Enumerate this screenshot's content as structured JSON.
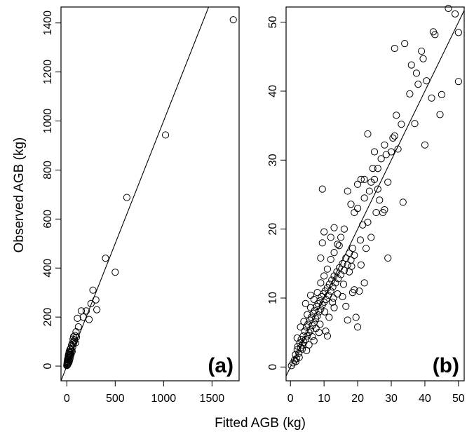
{
  "figure": {
    "ylabel": "Observed AGB (kg)",
    "xlabel": "Fitted AGB (kg)"
  },
  "chart_data": [
    {
      "type": "scatter",
      "panel_label": "(a)",
      "xlim": [
        -60,
        1780
      ],
      "ylim": [
        -60,
        1465
      ],
      "xticks": [
        0,
        500,
        1000,
        1500
      ],
      "yticks": [
        0,
        200,
        400,
        600,
        800,
        1000,
        1200,
        1400
      ],
      "reference_line": {
        "slope": 1,
        "intercept": 0
      },
      "grid": false,
      "points": [
        [
          0,
          2
        ],
        [
          2,
          6
        ],
        [
          3,
          12
        ],
        [
          5,
          8
        ],
        [
          5,
          18
        ],
        [
          6,
          4
        ],
        [
          8,
          25
        ],
        [
          10,
          14
        ],
        [
          10,
          30
        ],
        [
          12,
          20
        ],
        [
          14,
          10
        ],
        [
          15,
          35
        ],
        [
          16,
          42
        ],
        [
          18,
          28
        ],
        [
          20,
          50
        ],
        [
          22,
          15
        ],
        [
          24,
          38
        ],
        [
          25,
          60
        ],
        [
          26,
          22
        ],
        [
          28,
          45
        ],
        [
          30,
          55
        ],
        [
          32,
          30
        ],
        [
          34,
          68
        ],
        [
          35,
          48
        ],
        [
          38,
          40
        ],
        [
          40,
          72
        ],
        [
          42,
          58
        ],
        [
          45,
          50
        ],
        [
          48,
          85
        ],
        [
          50,
          65
        ],
        [
          55,
          60
        ],
        [
          58,
          95
        ],
        [
          60,
          78
        ],
        [
          65,
          110
        ],
        [
          68,
          90
        ],
        [
          70,
          120
        ],
        [
          75,
          100
        ],
        [
          80,
          105
        ],
        [
          85,
          125
        ],
        [
          90,
          95
        ],
        [
          95,
          140
        ],
        [
          100,
          118
        ],
        [
          110,
          195
        ],
        [
          120,
          160
        ],
        [
          150,
          225
        ],
        [
          170,
          200
        ],
        [
          200,
          225
        ],
        [
          230,
          190
        ],
        [
          250,
          255
        ],
        [
          270,
          310
        ],
        [
          300,
          270
        ],
        [
          310,
          230
        ],
        [
          400,
          440
        ],
        [
          500,
          383
        ],
        [
          620,
          688
        ],
        [
          1020,
          943
        ],
        [
          1720,
          1413
        ]
      ]
    },
    {
      "type": "scatter",
      "panel_label": "(b)",
      "xlim": [
        -1.3,
        51.7
      ],
      "ylim": [
        -2,
        52.2
      ],
      "xticks": [
        0,
        10,
        20,
        30,
        40,
        50
      ],
      "yticks": [
        0,
        10,
        20,
        30,
        40,
        50
      ],
      "reference_line": {
        "slope": 1,
        "intercept": 0
      },
      "grid": false,
      "points": [
        [
          0.3,
          0.2
        ],
        [
          0.8,
          0.6
        ],
        [
          1.2,
          1.0
        ],
        [
          1.5,
          1.8
        ],
        [
          1.8,
          1.2
        ],
        [
          2.0,
          2.5
        ],
        [
          2.2,
          3.0
        ],
        [
          2.5,
          2.0
        ],
        [
          2.8,
          3.5
        ],
        [
          3.0,
          2.8
        ],
        [
          3.2,
          4.0
        ],
        [
          3.5,
          3.2
        ],
        [
          3.8,
          4.5
        ],
        [
          4.0,
          3.6
        ],
        [
          4.2,
          5.2
        ],
        [
          4.5,
          4.0
        ],
        [
          4.8,
          5.8
        ],
        [
          5.0,
          4.5
        ],
        [
          5.2,
          6.2
        ],
        [
          5.5,
          5.0
        ],
        [
          5.8,
          6.8
        ],
        [
          6.0,
          5.4
        ],
        [
          6.2,
          7.2
        ],
        [
          6.5,
          6.0
        ],
        [
          6.8,
          7.8
        ],
        [
          7.0,
          6.4
        ],
        [
          7.2,
          8.2
        ],
        [
          7.5,
          7.0
        ],
        [
          7.8,
          8.8
        ],
        [
          8.0,
          7.4
        ],
        [
          8.2,
          9.2
        ],
        [
          8.5,
          8.0
        ],
        [
          8.8,
          9.6
        ],
        [
          9.0,
          8.4
        ],
        [
          9.2,
          10.2
        ],
        [
          9.5,
          9.0
        ],
        [
          9.8,
          10.6
        ],
        [
          10.0,
          9.4
        ],
        [
          10.3,
          11.0
        ],
        [
          10.6,
          9.8
        ],
        [
          11.0,
          11.5
        ],
        [
          11.3,
          10.4
        ],
        [
          11.6,
          12.0
        ],
        [
          12.0,
          11.0
        ],
        [
          12.3,
          12.6
        ],
        [
          12.6,
          11.6
        ],
        [
          13.0,
          13.2
        ],
        [
          13.4,
          12.2
        ],
        [
          13.8,
          13.8
        ],
        [
          14.2,
          12.8
        ],
        [
          14.6,
          14.4
        ],
        [
          15.0,
          13.4
        ],
        [
          15.5,
          15.0
        ],
        [
          16.0,
          14.0
        ],
        [
          16.5,
          15.8
        ],
        [
          17.0,
          14.8
        ],
        [
          17.5,
          16.5
        ],
        [
          18.0,
          15.5
        ],
        [
          18.5,
          17.2
        ],
        [
          19.0,
          16.2
        ],
        [
          2.0,
          4.2
        ],
        [
          3.0,
          5.8
        ],
        [
          4.0,
          6.6
        ],
        [
          5.0,
          7.6
        ],
        [
          6.0,
          8.6
        ],
        [
          7.0,
          9.8
        ],
        [
          8.0,
          10.8
        ],
        [
          9.0,
          12.2
        ],
        [
          10.0,
          13.2
        ],
        [
          11.0,
          14.2
        ],
        [
          12.0,
          15.6
        ],
        [
          13.0,
          16.6
        ],
        [
          14.0,
          17.8
        ],
        [
          15.0,
          18.8
        ],
        [
          16.0,
          20.0
        ],
        [
          9.5,
          25.8
        ],
        [
          10.0,
          19.6
        ],
        [
          12.0,
          18.8
        ],
        [
          13.0,
          20.2
        ],
        [
          14.5,
          17.6
        ],
        [
          17.0,
          25.5
        ],
        [
          18.0,
          23.6
        ],
        [
          19.0,
          22.4
        ],
        [
          20.0,
          23.0
        ],
        [
          21.0,
          27.2
        ],
        [
          22.0,
          24.5
        ],
        [
          23.0,
          33.8
        ],
        [
          23.5,
          25.5
        ],
        [
          24.0,
          26.8
        ],
        [
          24.5,
          28.8
        ],
        [
          25.0,
          31.2
        ],
        [
          26.0,
          25.8
        ],
        [
          27.0,
          30.2
        ],
        [
          27.5,
          22.4
        ],
        [
          28.0,
          32.2
        ],
        [
          28.5,
          30.8
        ],
        [
          29.0,
          26.8
        ],
        [
          30.0,
          31.2
        ],
        [
          30.5,
          33.2
        ],
        [
          31.0,
          33.5
        ],
        [
          31.5,
          36.5
        ],
        [
          32.0,
          31.6
        ],
        [
          33.0,
          35.2
        ],
        [
          33.5,
          23.9
        ],
        [
          34.0,
          46.9
        ],
        [
          31.0,
          46.2
        ],
        [
          35.5,
          39.6
        ],
        [
          36.0,
          43.8
        ],
        [
          37.0,
          35.3
        ],
        [
          37.5,
          42.6
        ],
        [
          38.0,
          41.0
        ],
        [
          39.0,
          45.8
        ],
        [
          39.5,
          44.7
        ],
        [
          40.0,
          32.2
        ],
        [
          40.5,
          41.5
        ],
        [
          42.0,
          39.0
        ],
        [
          42.5,
          48.6
        ],
        [
          43.0,
          48.2
        ],
        [
          44.5,
          36.6
        ],
        [
          45.0,
          39.5
        ],
        [
          47.0,
          52.0
        ],
        [
          49.0,
          51.2
        ],
        [
          50.0,
          48.5
        ],
        [
          50.0,
          41.4
        ],
        [
          29.0,
          15.8
        ],
        [
          20.0,
          5.8
        ],
        [
          19.5,
          7.2
        ],
        [
          17.0,
          6.8
        ],
        [
          22.0,
          12.2
        ],
        [
          20.5,
          11.0
        ],
        [
          11.0,
          4.5
        ],
        [
          10.5,
          5.2
        ],
        [
          8.5,
          5.0
        ],
        [
          7.0,
          3.8
        ],
        [
          4.5,
          9.2
        ],
        [
          6.0,
          10.4
        ],
        [
          9.0,
          15.8
        ],
        [
          9.5,
          18.0
        ],
        [
          15.5,
          10.2
        ],
        [
          14.0,
          10.6
        ],
        [
          16.5,
          8.8
        ],
        [
          18.5,
          10.8
        ],
        [
          21.0,
          14.8
        ],
        [
          22.5,
          17.2
        ],
        [
          24.0,
          18.8
        ],
        [
          25.5,
          22.4
        ],
        [
          26.5,
          24.2
        ],
        [
          28.0,
          22.8
        ],
        [
          19.0,
          11.2
        ],
        [
          13.0,
          8.6
        ],
        [
          12.5,
          9.4
        ],
        [
          17.5,
          13.8
        ],
        [
          11.5,
          7.2
        ],
        [
          6.5,
          4.4
        ],
        [
          5.5,
          3.2
        ],
        [
          3.5,
          2.6
        ],
        [
          2.6,
          1.4
        ],
        [
          1.6,
          0.8
        ],
        [
          4.8,
          2.4
        ],
        [
          7.6,
          5.6
        ],
        [
          8.8,
          6.2
        ],
        [
          10.2,
          8.0
        ],
        [
          12.8,
          10.0
        ],
        [
          15.8,
          12.0
        ],
        [
          18.2,
          14.6
        ],
        [
          20.8,
          18.4
        ],
        [
          21.5,
          20.6
        ],
        [
          23.0,
          21.0
        ],
        [
          25.0,
          27.2
        ],
        [
          26.0,
          28.8
        ],
        [
          22.0,
          27.2
        ],
        [
          20.0,
          26.5
        ]
      ]
    }
  ]
}
